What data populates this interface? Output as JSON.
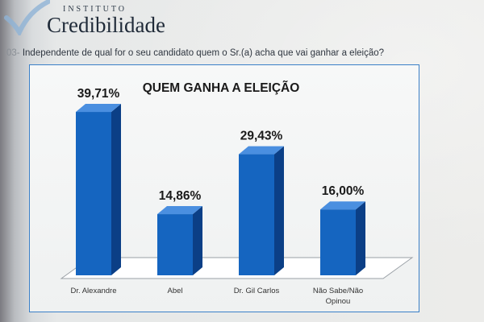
{
  "logo": {
    "small_text": "INSTITUTO",
    "big_text": "Credibilidade"
  },
  "question": {
    "number": "03-",
    "text": "Independente de qual for o seu candidato quem o Sr.(a) acha que vai ganhar a eleição?"
  },
  "chart_data": {
    "type": "bar",
    "title": "QUEM GANHA A ELEIÇÃO",
    "categories": [
      [
        "Dr. Alexandre"
      ],
      [
        "Abel"
      ],
      [
        "Dr. Gil Carlos"
      ],
      [
        "Não Sabe/Não",
        "Opinou"
      ]
    ],
    "values": [
      39.71,
      14.86,
      29.43,
      16.0
    ],
    "value_labels": [
      "39,71%",
      "14,86%",
      "29,43%",
      "16,00%"
    ],
    "ylim": [
      0,
      45
    ],
    "grid": false,
    "legend": "none",
    "colors": {
      "bar_front": "#1565c0",
      "bar_side": "#0b3f86",
      "bar_top": "#4a8fe0",
      "floor": "#ffffff",
      "frame": "#3a7fc7"
    }
  }
}
